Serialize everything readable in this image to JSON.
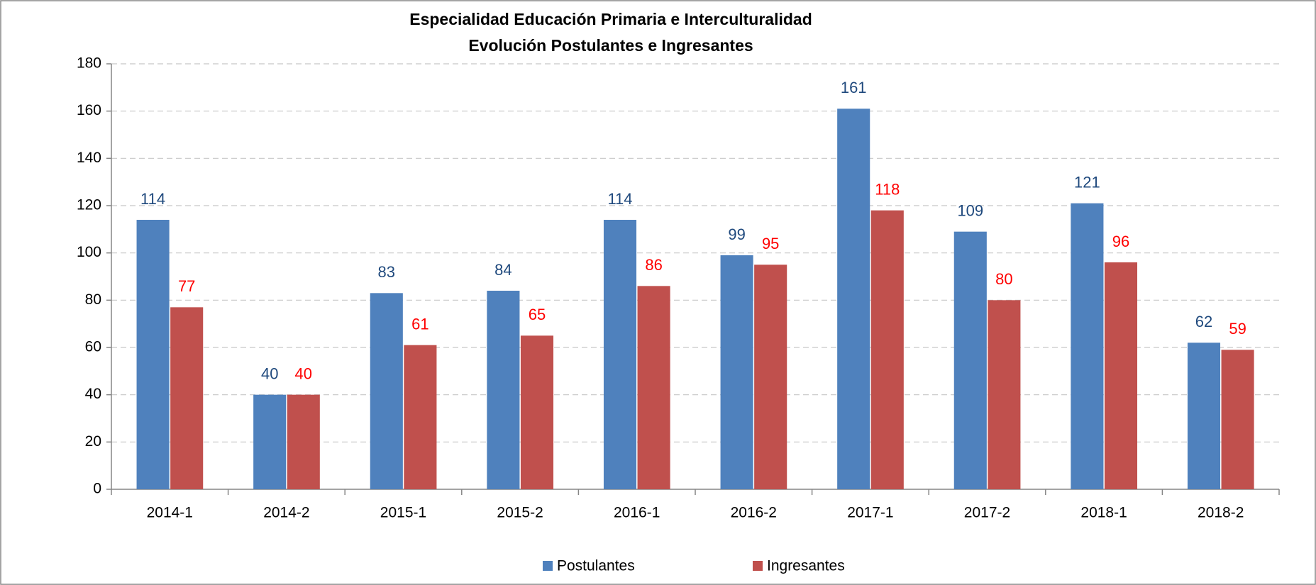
{
  "chart_data": {
    "type": "bar",
    "title": "Especialidad Educación Primaria e Interculturalidad",
    "subtitle": "Evolución Postulantes e Ingresantes",
    "categories": [
      "2014-1",
      "2014-2",
      "2015-1",
      "2015-2",
      "2016-1",
      "2016-2",
      "2017-1",
      "2017-2",
      "2018-1",
      "2018-2"
    ],
    "series": [
      {
        "name": "Postulantes",
        "color": "#4f81bd",
        "values": [
          114,
          40,
          83,
          84,
          114,
          99,
          161,
          109,
          121,
          62
        ]
      },
      {
        "name": "Ingresantes",
        "color": "#c0504d",
        "values": [
          77,
          40,
          61,
          65,
          86,
          95,
          118,
          80,
          96,
          59
        ]
      }
    ],
    "ylim": [
      0,
      180
    ],
    "yticks": [
      0,
      20,
      40,
      60,
      80,
      100,
      120,
      140,
      160,
      180
    ],
    "grid": true,
    "legend": "bottom"
  }
}
